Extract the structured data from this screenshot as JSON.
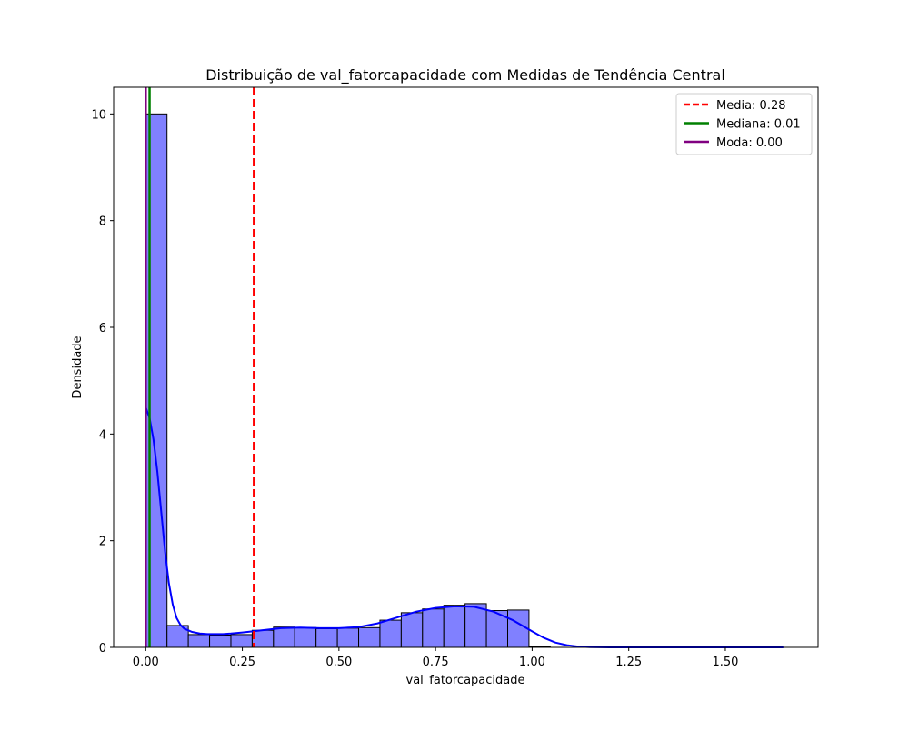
{
  "chart_data": {
    "type": "bar",
    "title": "Distribuição de val_fatorcapacidade com Medidas de Tendência Central",
    "xlabel": "val_fatorcapacidade",
    "ylabel": "Densidade",
    "xlim": [
      -0.083,
      1.74
    ],
    "ylim": [
      0,
      10.5
    ],
    "xticks": [
      0.0,
      0.25,
      0.5,
      0.75,
      1.0,
      1.25,
      1.5
    ],
    "xtick_labels": [
      "0.00",
      "0.25",
      "0.50",
      "0.75",
      "1.00",
      "1.25",
      "1.50"
    ],
    "yticks": [
      0,
      2,
      4,
      6,
      8,
      10
    ],
    "ytick_labels": [
      "0",
      "2",
      "4",
      "6",
      "8",
      "10"
    ],
    "grid": false,
    "legend_position": "top-right",
    "histogram": {
      "bin_width": 0.0551,
      "bin_start": 0.0,
      "fill_color": "#8080ff",
      "edge_color": "#000000",
      "densities": [
        10.0,
        0.41,
        0.24,
        0.23,
        0.24,
        0.32,
        0.38,
        0.37,
        0.35,
        0.36,
        0.37,
        0.51,
        0.65,
        0.72,
        0.79,
        0.82,
        0.69,
        0.7,
        0.01,
        0.0,
        0.0,
        0.0,
        0.0,
        0.0,
        0.0,
        0.0,
        0.0,
        0.0,
        0.0,
        0.0
      ]
    },
    "kde": {
      "color": "#0000ff",
      "x": [
        0.0,
        0.01,
        0.02,
        0.03,
        0.04,
        0.05,
        0.06,
        0.07,
        0.08,
        0.09,
        0.1,
        0.12,
        0.14,
        0.16,
        0.18,
        0.2,
        0.22,
        0.25,
        0.3,
        0.35,
        0.4,
        0.45,
        0.5,
        0.55,
        0.6,
        0.65,
        0.7,
        0.75,
        0.8,
        0.85,
        0.9,
        0.95,
        1.0,
        1.03,
        1.06,
        1.09,
        1.12,
        1.15,
        1.2,
        1.3,
        1.5,
        1.65
      ],
      "y": [
        4.5,
        4.3,
        3.9,
        3.3,
        2.55,
        1.8,
        1.2,
        0.8,
        0.55,
        0.42,
        0.35,
        0.29,
        0.26,
        0.25,
        0.25,
        0.25,
        0.26,
        0.28,
        0.32,
        0.36,
        0.37,
        0.36,
        0.36,
        0.38,
        0.45,
        0.56,
        0.67,
        0.74,
        0.77,
        0.76,
        0.67,
        0.51,
        0.3,
        0.18,
        0.09,
        0.04,
        0.015,
        0.005,
        0.0,
        0.0,
        0.0,
        0.0
      ]
    },
    "vlines": [
      {
        "name": "Media: 0.28",
        "x": 0.28,
        "color": "#ff0000",
        "style": "dashed"
      },
      {
        "name": "Mediana: 0.01",
        "x": 0.01,
        "color": "#008000",
        "style": "solid"
      },
      {
        "name": "Moda: 0.00",
        "x": 0.0,
        "color": "#800080",
        "style": "solid"
      }
    ]
  }
}
